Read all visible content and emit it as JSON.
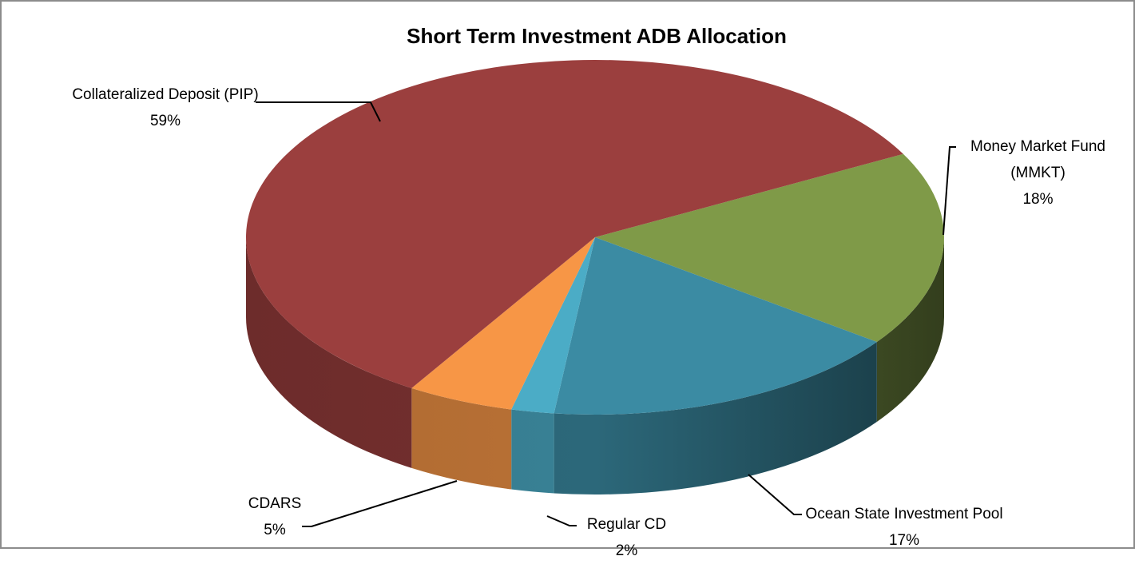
{
  "chart_data": {
    "type": "pie3d",
    "title": "Short Term Investment ADB Allocation",
    "categories": [
      "Money Market Fund (MMKT)",
      "Ocean State Investment Pool",
      "Regular CD",
      "CDARS",
      "Collateralized Deposit (PIP)"
    ],
    "values": [
      18,
      17,
      2,
      5,
      59
    ],
    "value_labels": [
      "18%",
      "17%",
      "2%",
      "5%",
      "59%"
    ],
    "colors": [
      "#7f9a48",
      "#3b8ba3",
      "#4bacc6",
      "#f79646",
      "#9b3f3e"
    ]
  }
}
